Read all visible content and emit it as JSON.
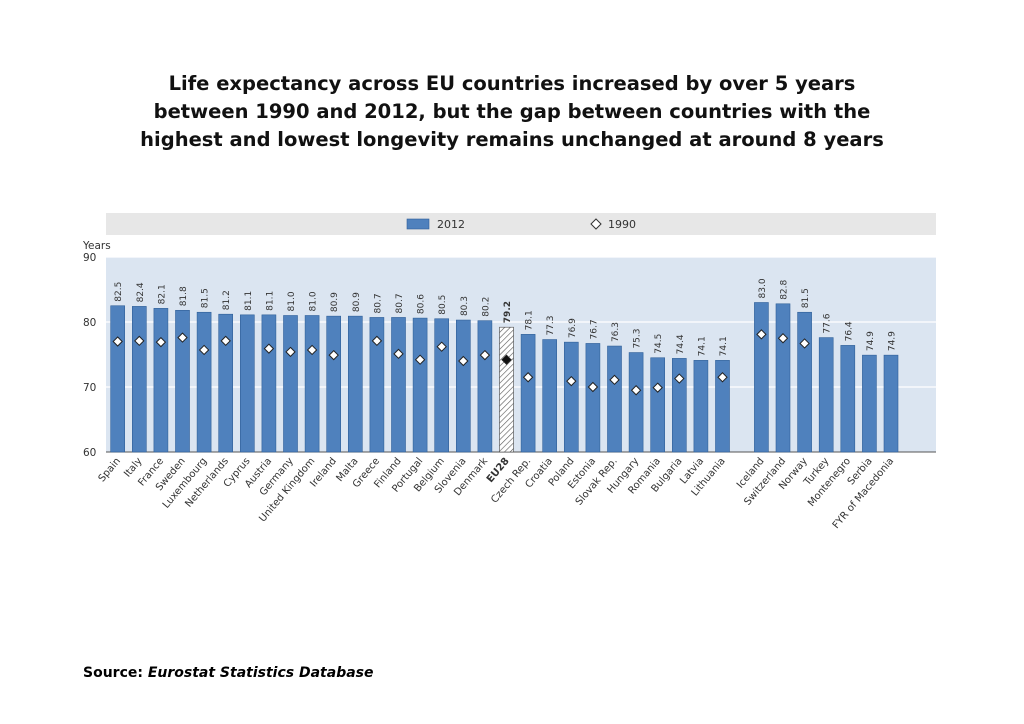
{
  "title_lines": [
    "Life expectancy across EU countries increased by over 5 years",
    "between 1990 and 2012, but the gap between countries with the",
    "highest and lowest longevity remains unchanged at around 8 years"
  ],
  "source": {
    "label": "Source:",
    "name": "Eurostat Statistics Database"
  },
  "colors": {
    "bar": "#4f81bd",
    "bar_edge": "#2f5f98",
    "plot_bg": "#dbe5f1",
    "legend_bg": "#e7e7e7"
  },
  "chart_data": {
    "type": "bar",
    "ylabel": "Years",
    "ylim": [
      60,
      90
    ],
    "yticks": [
      60,
      70,
      80,
      90
    ],
    "legend": [
      "2012",
      "1990"
    ],
    "legend_position": "top-center",
    "categories": [
      "Spain",
      "Italy",
      "France",
      "Sweden",
      "Luxembourg",
      "Netherlands",
      "Cyprus",
      "Austria",
      "Germany",
      "United Kingdom",
      "Ireland",
      "Malta",
      "Greece",
      "Finland",
      "Portugal",
      "Belgium",
      "Slovenia",
      "Denmark",
      "EU28",
      "Czech Rep.",
      "Croatia",
      "Poland",
      "Estonia",
      "Slovak Rep.",
      "Hungary",
      "Romania",
      "Bulgaria",
      "Latvia",
      "Lithuania",
      "Iceland",
      "Switzerland",
      "Norway",
      "Turkey",
      "Montenegro",
      "Serbia",
      "FYR of Macedonia"
    ],
    "series": [
      {
        "name": "2012",
        "values": [
          82.5,
          82.4,
          82.1,
          81.8,
          81.5,
          81.2,
          81.1,
          81.1,
          81.0,
          81.0,
          80.9,
          80.9,
          80.7,
          80.7,
          80.6,
          80.5,
          80.3,
          80.2,
          79.2,
          78.1,
          77.3,
          76.9,
          76.7,
          76.3,
          75.3,
          74.5,
          74.4,
          74.1,
          74.1,
          83.0,
          82.8,
          81.5,
          77.6,
          76.4,
          74.9,
          74.9
        ],
        "labels": [
          "82.5",
          "82.4",
          "82.1",
          "81.8",
          "81.5",
          "81.2",
          "81.1",
          "81.1",
          "81.0",
          "81.0",
          "80.9",
          "80.9",
          "80.7",
          "80.7",
          "80.6",
          "80.5",
          "80.3",
          "80.2",
          "79.2",
          "78.1",
          "77.3",
          "76.9",
          "76.7",
          "76.3",
          "75.3",
          "74.5",
          "74.4",
          "74.1",
          "74.1",
          "83.0",
          "82.8",
          "81.5",
          "77.6",
          "76.4",
          "74.9",
          "74.9"
        ]
      },
      {
        "name": "1990",
        "values": [
          77.0,
          77.1,
          76.9,
          77.6,
          75.7,
          77.1,
          null,
          75.9,
          75.4,
          75.7,
          74.9,
          null,
          77.1,
          75.1,
          74.2,
          76.2,
          74.0,
          74.9,
          74.2,
          71.5,
          null,
          70.9,
          70.0,
          71.1,
          69.5,
          69.9,
          71.3,
          null,
          71.5,
          78.1,
          77.5,
          76.7,
          null,
          null,
          null,
          null
        ]
      }
    ],
    "highlight": "EU28",
    "group_break_after": "Lithuania"
  }
}
